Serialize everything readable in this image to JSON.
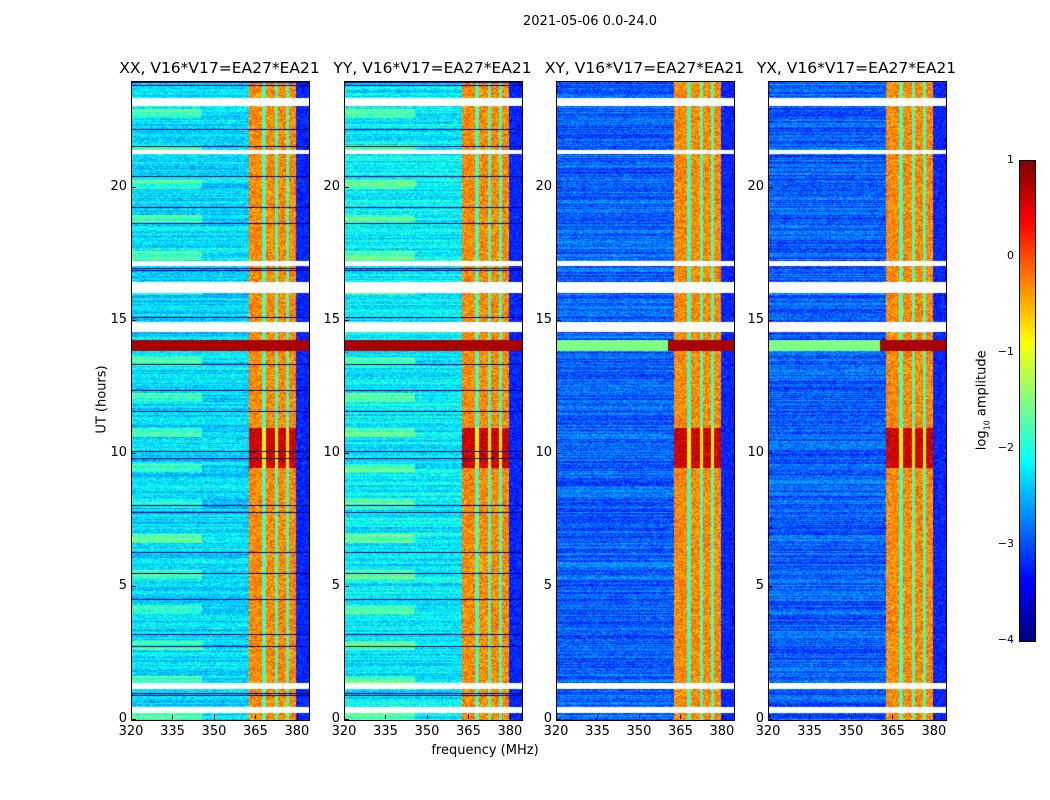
{
  "figure": {
    "suptitle": "2021-05-06 0.0-24.0"
  },
  "chart_data": {
    "type": "heatmap",
    "xlabel": "frequency (MHz)",
    "ylabel": "UT (hours)",
    "xlim": [
      320,
      384
    ],
    "ylim": [
      0,
      24
    ],
    "xticks": [
      "320",
      "335",
      "350",
      "365",
      "380"
    ],
    "yticks": [
      "0",
      "5",
      "10",
      "15",
      "20"
    ],
    "panels": [
      {
        "title": "XX, V16*V17=EA27*EA21",
        "background_log_amp": -2.3
      },
      {
        "title": "YY, V16*V17=EA27*EA21",
        "background_log_amp": -2.2
      },
      {
        "title": "XY, V16*V17=EA27*EA21",
        "background_log_amp": -2.9
      },
      {
        "title": "YX, V16*V17=EA27*EA21",
        "background_log_amp": -2.9
      }
    ],
    "features": {
      "rfi_band_mhz": [
        362,
        379
      ],
      "rfi_band_log_amp": -0.3,
      "strong_rows_hours": [
        [
          13.9,
          14.3
        ],
        [
          9.5,
          11.0
        ]
      ],
      "flagged_hours": [
        [
          23.1,
          23.4
        ],
        [
          21.3,
          21.45
        ],
        [
          17.1,
          17.3
        ],
        [
          16.1,
          16.5
        ],
        [
          14.6,
          15.0
        ],
        [
          1.2,
          1.4
        ],
        [
          0.3,
          0.5
        ]
      ]
    },
    "colorbar": {
      "label": "log10 amplitude",
      "label_main": "log",
      "label_sub": "10",
      "label_rest": " amplitude",
      "range": [
        -4,
        1
      ],
      "ticks": [
        "1",
        "0",
        "−1",
        "−2",
        "−3",
        "−4"
      ],
      "colormap": "jet"
    }
  }
}
